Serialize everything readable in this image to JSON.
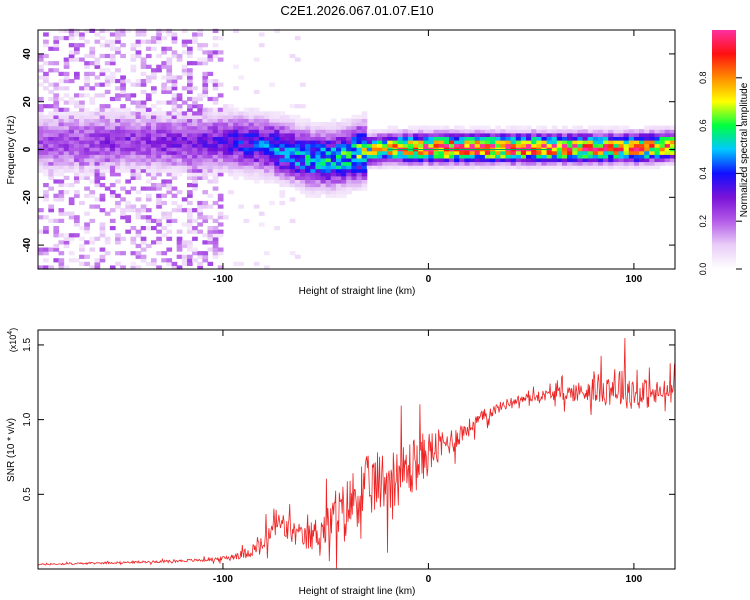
{
  "title": "C2E1.2026.067.01.07.E10",
  "chart_data": [
    {
      "type": "heatmap",
      "name": "spectrogram",
      "xlabel": "Height of straight line (km)",
      "ylabel": "Frequency (Hz)",
      "xlim": [
        -190,
        120
      ],
      "ylim": [
        -50,
        50
      ],
      "xticks": [
        -100,
        0,
        100
      ],
      "yticks": [
        -40,
        -20,
        0,
        20,
        40
      ],
      "colorbar": {
        "label": "Normalized spectral amplitude",
        "range": [
          0.0,
          1.0
        ],
        "ticks": [
          "0.0",
          "0.2",
          "0.4",
          "0.6",
          "0.8"
        ],
        "colors": [
          "#ffffff",
          "#e9cdf7",
          "#b45ce8",
          "#7a12d8",
          "#1010ff",
          "#00c8ff",
          "#00ff40",
          "#ffff00",
          "#ff8c00",
          "#ff1010",
          "#ff30a0"
        ]
      },
      "ridge": {
        "x": [
          -190,
          -150,
          -120,
          -100,
          -80,
          -60,
          -50,
          -40,
          -30,
          -20,
          -10,
          0,
          20,
          40,
          60,
          80,
          100,
          120
        ],
        "y": [
          2,
          3,
          2,
          3,
          1,
          -4,
          -5,
          -3,
          -1,
          0,
          0,
          0,
          0,
          0,
          0,
          0,
          0,
          1
        ],
        "peak_amplitude": [
          0.25,
          0.28,
          0.3,
          0.35,
          0.45,
          0.55,
          0.55,
          0.6,
          0.7,
          0.85,
          0.9,
          1.0,
          1.0,
          1.0,
          0.95,
          0.9,
          0.88,
          0.85
        ]
      },
      "noise_region": {
        "x_from": -190,
        "x_to": -100,
        "amplitude": 0.1
      }
    },
    {
      "type": "line",
      "name": "snr",
      "xlabel": "Height of straight line (km)",
      "ylabel": "SNR (10 * v/v)",
      "exponent_label": "(x10",
      "exponent_power": "4",
      "xlim": [
        -190,
        120
      ],
      "ylim": [
        0,
        1.6
      ],
      "xticks": [
        -100,
        0,
        100
      ],
      "yticks": [
        0.5,
        1.0,
        1.5
      ],
      "ytick_labels": [
        "0.5",
        "1.0",
        "1.5"
      ],
      "color": "#ee2222",
      "x": [
        -190,
        -160,
        -130,
        -110,
        -100,
        -90,
        -80,
        -75,
        -68,
        -60,
        -50,
        -40,
        -35,
        -25,
        -15,
        -8,
        0,
        10,
        20,
        30,
        40,
        50,
        60,
        70,
        80,
        90,
        95,
        100,
        110,
        120
      ],
      "y": [
        0.03,
        0.04,
        0.05,
        0.06,
        0.07,
        0.1,
        0.16,
        0.32,
        0.26,
        0.2,
        0.28,
        0.4,
        0.5,
        0.58,
        0.62,
        0.68,
        0.78,
        0.85,
        0.95,
        1.05,
        1.12,
        1.15,
        1.17,
        1.18,
        1.2,
        1.22,
        1.23,
        1.18,
        1.17,
        1.2
      ],
      "noise_amp": [
        0.01,
        0.012,
        0.015,
        0.02,
        0.03,
        0.06,
        0.14,
        0.22,
        0.18,
        0.16,
        0.28,
        0.4,
        0.45,
        0.42,
        0.4,
        0.4,
        0.3,
        0.18,
        0.12,
        0.08,
        0.06,
        0.06,
        0.08,
        0.12,
        0.18,
        0.26,
        0.3,
        0.24,
        0.18,
        0.16
      ]
    }
  ]
}
